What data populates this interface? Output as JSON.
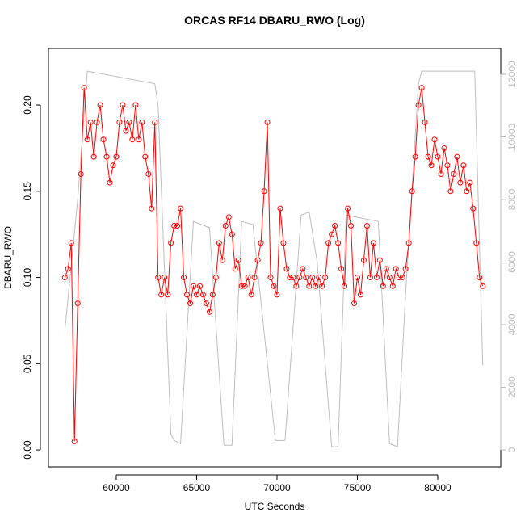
{
  "chart_data": {
    "type": "line",
    "title": "ORCAS RF14 DBARU_RWO (Log)",
    "xlabel": "UTC Seconds",
    "ylabel": "DBARU_RWO",
    "xlim": [
      55780,
      83920
    ],
    "ylim": [
      -0.0098,
      0.2328
    ],
    "y2lim": [
      -542,
      12826
    ],
    "xticks": [
      60000,
      65000,
      70000,
      75000,
      80000
    ],
    "yticks": [
      {
        "value": 0,
        "label": "0.00"
      },
      {
        "value": 0.05,
        "label": "0.05"
      },
      {
        "value": 0.1,
        "label": "0.10"
      },
      {
        "value": 0.15,
        "label": "0.15"
      },
      {
        "value": 0.2,
        "label": "0.20"
      }
    ],
    "y2ticks": [
      0,
      2000,
      4000,
      6000,
      8000,
      10000,
      12000
    ],
    "series": [
      {
        "color": "#ff0000",
        "marker": "circle",
        "x": [
          56800,
          57000,
          57200,
          57400,
          57600,
          57800,
          58000,
          58200,
          58400,
          58600,
          58800,
          59000,
          59200,
          59400,
          59600,
          59800,
          60000,
          60200,
          60400,
          60600,
          60800,
          61000,
          61200,
          61400,
          61600,
          61800,
          62000,
          62200,
          62400,
          62600,
          62800,
          63000,
          63200,
          63400,
          63600,
          63800,
          64000,
          64200,
          64400,
          64600,
          64800,
          65000,
          65200,
          65400,
          65600,
          65800,
          66000,
          66200,
          66400,
          66600,
          66800,
          67000,
          67200,
          67400,
          67600,
          67800,
          68000,
          68200,
          68400,
          68600,
          68800,
          69000,
          69200,
          69400,
          69600,
          69800,
          70000,
          70200,
          70400,
          70600,
          70800,
          71000,
          71200,
          71400,
          71600,
          71800,
          72000,
          72200,
          72400,
          72600,
          72800,
          73000,
          73200,
          73400,
          73600,
          73800,
          74000,
          74200,
          74400,
          74600,
          74800,
          75000,
          75200,
          75400,
          75600,
          75800,
          76000,
          76200,
          76400,
          76600,
          76800,
          77000,
          77200,
          77400,
          77600,
          77800,
          78000,
          78200,
          78400,
          78600,
          78800,
          79000,
          79200,
          79400,
          79600,
          79800,
          80000,
          80200,
          80400,
          80600,
          80800,
          81000,
          81200,
          81400,
          81600,
          81800,
          82000,
          82200,
          82400,
          82600,
          82800
        ],
        "values": [
          0.1,
          0.105,
          0.12,
          0.005,
          0.085,
          0.16,
          0.21,
          0.18,
          0.19,
          0.17,
          0.19,
          0.2,
          0.18,
          0.17,
          0.155,
          0.165,
          0.17,
          0.19,
          0.2,
          0.185,
          0.19,
          0.18,
          0.2,
          0.18,
          0.19,
          0.17,
          0.16,
          0.14,
          0.19,
          0.1,
          0.09,
          0.1,
          0.09,
          0.12,
          0.13,
          0.13,
          0.14,
          0.1,
          0.09,
          0.085,
          0.095,
          0.09,
          0.095,
          0.09,
          0.085,
          0.08,
          0.09,
          0.1,
          0.12,
          0.11,
          0.13,
          0.135,
          0.125,
          0.105,
          0.11,
          0.095,
          0.095,
          0.1,
          0.09,
          0.1,
          0.11,
          0.12,
          0.15,
          0.19,
          0.1,
          0.095,
          0.09,
          0.14,
          0.12,
          0.105,
          0.1,
          0.1,
          0.095,
          0.1,
          0.105,
          0.1,
          0.095,
          0.1,
          0.095,
          0.1,
          0.095,
          0.1,
          0.12,
          0.125,
          0.13,
          0.12,
          0.105,
          0.095,
          0.14,
          0.13,
          0.085,
          0.1,
          0.09,
          0.11,
          0.13,
          0.1,
          0.12,
          0.1,
          0.11,
          0.095,
          0.105,
          0.1,
          0.095,
          0.105,
          0.1,
          0.1,
          0.105,
          0.12,
          0.15,
          0.17,
          0.2,
          0.21,
          0.19,
          0.17,
          0.165,
          0.18,
          0.17,
          0.16,
          0.175,
          0.165,
          0.15,
          0.16,
          0.17,
          0.155,
          0.165,
          0.15,
          0.155,
          0.14,
          0.12,
          0.1,
          0.095
        ]
      },
      {
        "color": "#bebebe",
        "axis": "y2",
        "x": [
          56800,
          57600,
          58200,
          62400,
          62600,
          63400,
          63600,
          64000,
          64800,
          65800,
          66700,
          67200,
          67800,
          68500,
          69900,
          70500,
          71500,
          72000,
          72500,
          73400,
          73800,
          74300,
          76300,
          77000,
          77500,
          78000,
          78800,
          79000,
          82300,
          82800
        ],
        "values": [
          3800,
          8000,
          12100,
          11700,
          11000,
          500,
          300,
          200,
          7300,
          7100,
          150,
          150,
          7300,
          7200,
          300,
          300,
          7500,
          7600,
          6000,
          100,
          100,
          7500,
          7300,
          200,
          100,
          5000,
          11700,
          12100,
          12100,
          2700
        ]
      }
    ]
  }
}
